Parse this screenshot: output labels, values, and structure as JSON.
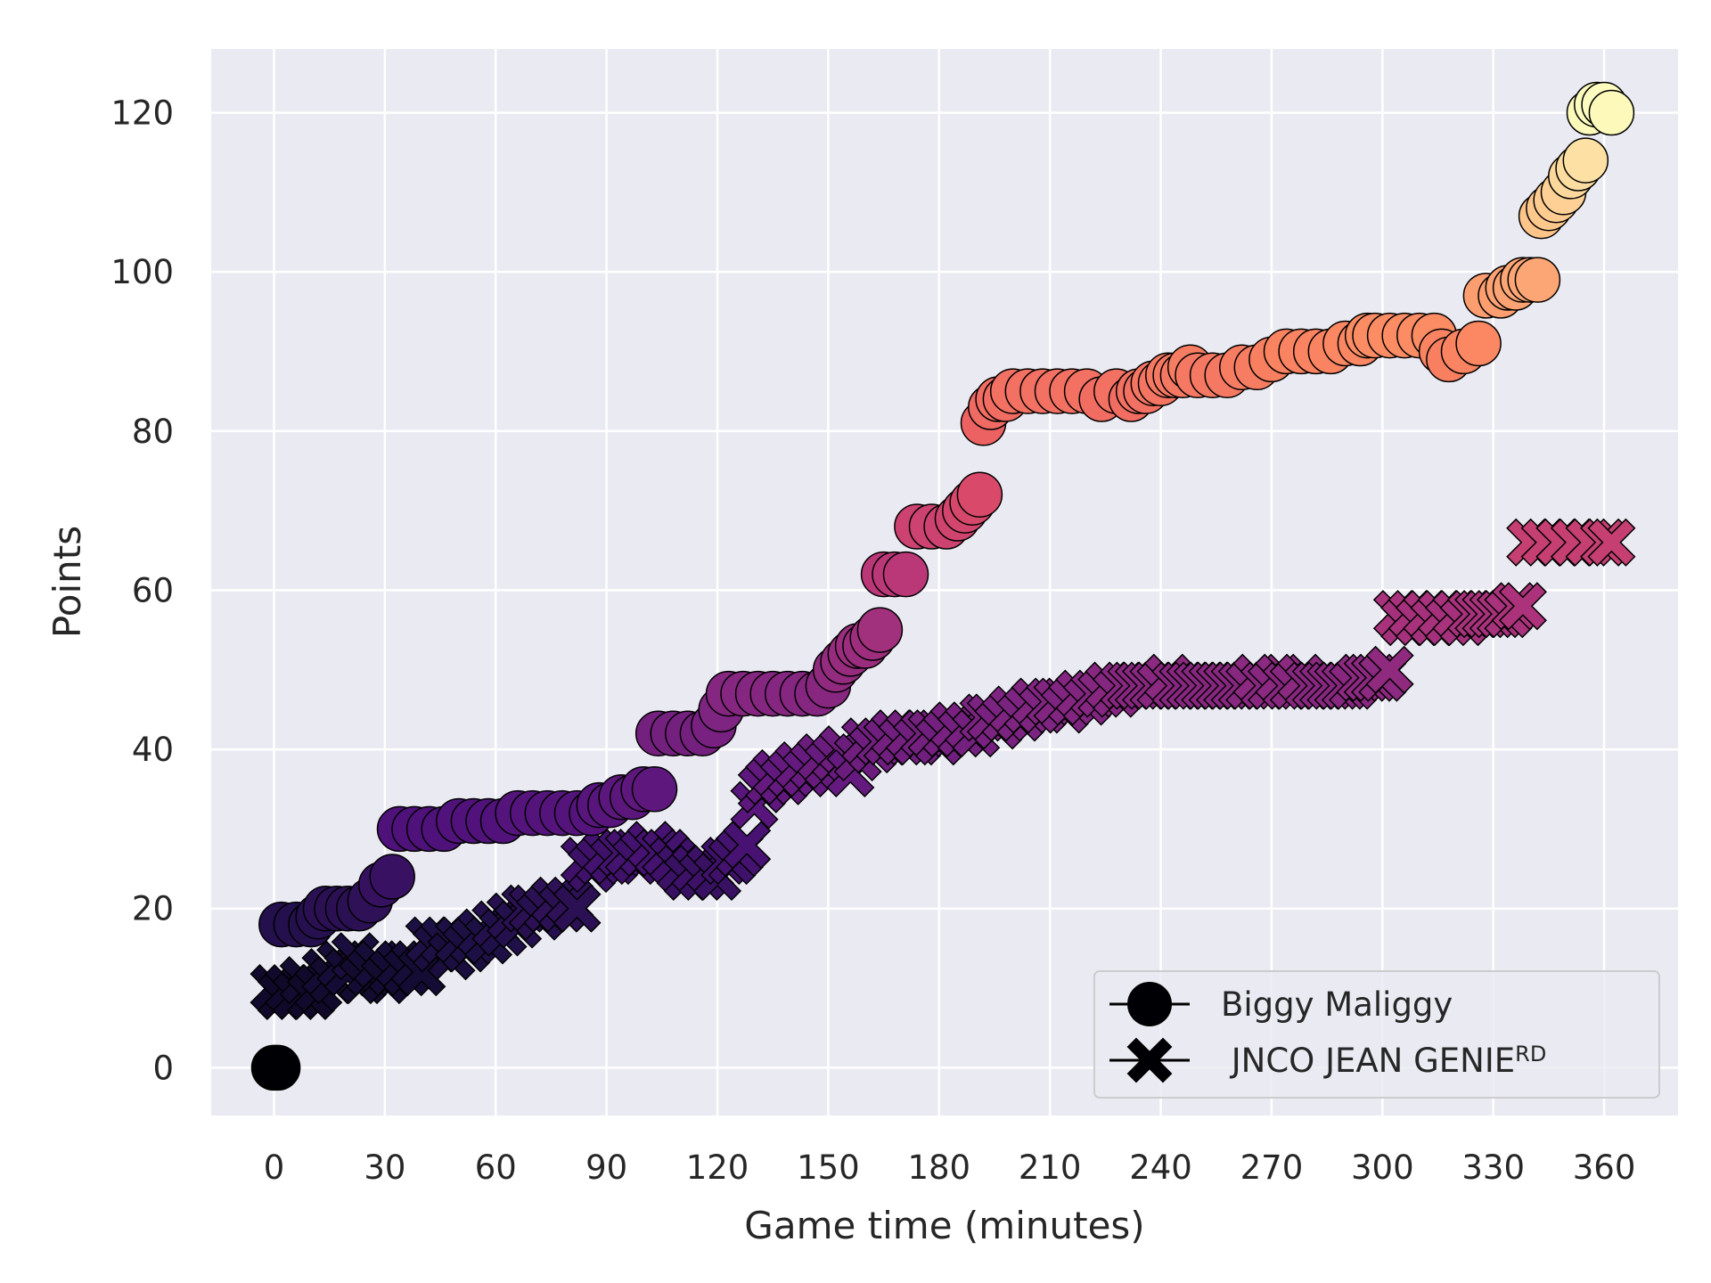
{
  "chart_data": {
    "type": "scatter",
    "xlabel": "Game time (minutes)",
    "ylabel": "Points",
    "xlim": [
      -17,
      380
    ],
    "ylim": [
      -6,
      128
    ],
    "xticks": [
      0,
      30,
      60,
      90,
      120,
      150,
      180,
      210,
      240,
      270,
      300,
      330,
      360
    ],
    "yticks": [
      0,
      20,
      40,
      60,
      80,
      100,
      120
    ],
    "grid": true,
    "legend_position": "lower-right",
    "colormap": "magma",
    "background_color": "#eaeaf2",
    "grid_color": "#ffffff",
    "series": [
      {
        "name": "Biggy Maliggy",
        "marker": "circle",
        "points": [
          [
            0,
            0
          ],
          [
            1,
            0
          ],
          [
            2,
            18
          ],
          [
            6,
            18
          ],
          [
            10,
            18
          ],
          [
            12,
            19
          ],
          [
            14,
            20
          ],
          [
            17,
            20
          ],
          [
            20,
            20
          ],
          [
            23,
            20
          ],
          [
            26,
            21
          ],
          [
            29,
            23
          ],
          [
            32,
            24
          ],
          [
            34,
            30
          ],
          [
            38,
            30
          ],
          [
            42,
            30
          ],
          [
            46,
            30
          ],
          [
            50,
            31
          ],
          [
            54,
            31
          ],
          [
            58,
            31
          ],
          [
            62,
            31
          ],
          [
            66,
            32
          ],
          [
            70,
            32
          ],
          [
            74,
            32
          ],
          [
            78,
            32
          ],
          [
            82,
            32
          ],
          [
            86,
            32
          ],
          [
            88,
            33
          ],
          [
            91,
            33
          ],
          [
            94,
            34
          ],
          [
            97,
            34
          ],
          [
            100,
            35
          ],
          [
            103,
            35
          ],
          [
            104,
            42
          ],
          [
            108,
            42
          ],
          [
            112,
            42
          ],
          [
            116,
            42
          ],
          [
            119,
            43
          ],
          [
            121,
            45
          ],
          [
            123,
            47
          ],
          [
            127,
            47
          ],
          [
            131,
            47
          ],
          [
            135,
            47
          ],
          [
            139,
            47
          ],
          [
            143,
            47
          ],
          [
            147,
            47
          ],
          [
            150,
            48
          ],
          [
            152,
            50
          ],
          [
            154,
            51
          ],
          [
            156,
            52
          ],
          [
            158,
            53
          ],
          [
            160,
            53
          ],
          [
            162,
            54
          ],
          [
            164,
            55
          ],
          [
            165,
            62
          ],
          [
            168,
            62
          ],
          [
            171,
            62
          ],
          [
            174,
            68
          ],
          [
            178,
            68
          ],
          [
            182,
            68
          ],
          [
            185,
            69
          ],
          [
            187,
            70
          ],
          [
            189,
            71
          ],
          [
            191,
            72
          ],
          [
            192,
            81
          ],
          [
            194,
            83
          ],
          [
            196,
            84
          ],
          [
            198,
            84
          ],
          [
            200,
            85
          ],
          [
            204,
            85
          ],
          [
            208,
            85
          ],
          [
            212,
            85
          ],
          [
            216,
            85
          ],
          [
            220,
            85
          ],
          [
            224,
            84
          ],
          [
            228,
            85
          ],
          [
            232,
            84
          ],
          [
            234,
            85
          ],
          [
            236,
            85
          ],
          [
            238,
            86
          ],
          [
            240,
            86
          ],
          [
            242,
            87
          ],
          [
            244,
            87
          ],
          [
            246,
            87
          ],
          [
            248,
            88
          ],
          [
            250,
            87
          ],
          [
            254,
            87
          ],
          [
            258,
            87
          ],
          [
            262,
            88
          ],
          [
            266,
            88
          ],
          [
            270,
            89
          ],
          [
            274,
            90
          ],
          [
            278,
            90
          ],
          [
            282,
            90
          ],
          [
            286,
            90
          ],
          [
            290,
            91
          ],
          [
            294,
            91
          ],
          [
            296,
            92
          ],
          [
            298,
            92
          ],
          [
            302,
            92
          ],
          [
            306,
            92
          ],
          [
            310,
            92
          ],
          [
            314,
            92
          ],
          [
            316,
            90
          ],
          [
            318,
            89
          ],
          [
            322,
            90
          ],
          [
            326,
            91
          ],
          [
            328,
            97
          ],
          [
            332,
            97
          ],
          [
            334,
            98
          ],
          [
            336,
            98
          ],
          [
            338,
            99
          ],
          [
            340,
            99
          ],
          [
            342,
            99
          ],
          [
            343,
            107
          ],
          [
            345,
            108
          ],
          [
            347,
            109
          ],
          [
            349,
            110
          ],
          [
            351,
            112
          ],
          [
            353,
            113
          ],
          [
            355,
            114
          ],
          [
            356,
            120
          ],
          [
            358,
            121
          ],
          [
            360,
            121
          ],
          [
            362,
            120
          ]
        ]
      },
      {
        "name": " JNCO JEAN GENIE",
        "superscript": "RD",
        "marker": "x",
        "points": [
          [
            0,
            10
          ],
          [
            2,
            9
          ],
          [
            4,
            10
          ],
          [
            6,
            9
          ],
          [
            8,
            11
          ],
          [
            10,
            9
          ],
          [
            12,
            10
          ],
          [
            14,
            12
          ],
          [
            16,
            11
          ],
          [
            18,
            13
          ],
          [
            20,
            12
          ],
          [
            22,
            14
          ],
          [
            24,
            11
          ],
          [
            26,
            12
          ],
          [
            28,
            13
          ],
          [
            30,
            11
          ],
          [
            32,
            12
          ],
          [
            34,
            13
          ],
          [
            36,
            12
          ],
          [
            38,
            13
          ],
          [
            40,
            12
          ],
          [
            42,
            16
          ],
          [
            44,
            15
          ],
          [
            46,
            16
          ],
          [
            48,
            14
          ],
          [
            50,
            16
          ],
          [
            52,
            15
          ],
          [
            54,
            16
          ],
          [
            56,
            17
          ],
          [
            58,
            16
          ],
          [
            60,
            18
          ],
          [
            62,
            17
          ],
          [
            64,
            19
          ],
          [
            66,
            18
          ],
          [
            68,
            20
          ],
          [
            70,
            20
          ],
          [
            72,
            19
          ],
          [
            74,
            20
          ],
          [
            76,
            21
          ],
          [
            78,
            20
          ],
          [
            80,
            21
          ],
          [
            82,
            20
          ],
          [
            84,
            26
          ],
          [
            86,
            25
          ],
          [
            88,
            26
          ],
          [
            90,
            27
          ],
          [
            92,
            26
          ],
          [
            94,
            27
          ],
          [
            96,
            27
          ],
          [
            98,
            26
          ],
          [
            100,
            27
          ],
          [
            102,
            28
          ],
          [
            104,
            27
          ],
          [
            106,
            27
          ],
          [
            108,
            26
          ],
          [
            110,
            25
          ],
          [
            112,
            24
          ],
          [
            114,
            25
          ],
          [
            116,
            24
          ],
          [
            118,
            25
          ],
          [
            120,
            24
          ],
          [
            122,
            26
          ],
          [
            124,
            26
          ],
          [
            126,
            27
          ],
          [
            128,
            28
          ],
          [
            130,
            33
          ],
          [
            132,
            35
          ],
          [
            134,
            36
          ],
          [
            136,
            37
          ],
          [
            138,
            36
          ],
          [
            140,
            37
          ],
          [
            142,
            38
          ],
          [
            144,
            37
          ],
          [
            146,
            38
          ],
          [
            148,
            39
          ],
          [
            150,
            38
          ],
          [
            152,
            39
          ],
          [
            154,
            40
          ],
          [
            156,
            37
          ],
          [
            158,
            39
          ],
          [
            160,
            41
          ],
          [
            162,
            40
          ],
          [
            164,
            41
          ],
          [
            166,
            41
          ],
          [
            168,
            42
          ],
          [
            170,
            41
          ],
          [
            172,
            42
          ],
          [
            174,
            41
          ],
          [
            176,
            42
          ],
          [
            178,
            42
          ],
          [
            180,
            41
          ],
          [
            182,
            42
          ],
          [
            184,
            43
          ],
          [
            186,
            42
          ],
          [
            188,
            43
          ],
          [
            190,
            42
          ],
          [
            192,
            44
          ],
          [
            194,
            44
          ],
          [
            196,
            43
          ],
          [
            198,
            44
          ],
          [
            200,
            45
          ],
          [
            202,
            44
          ],
          [
            204,
            45
          ],
          [
            206,
            46
          ],
          [
            208,
            45
          ],
          [
            210,
            46
          ],
          [
            212,
            46
          ],
          [
            214,
            45
          ],
          [
            216,
            46
          ],
          [
            218,
            47
          ],
          [
            220,
            46
          ],
          [
            222,
            47
          ],
          [
            224,
            47
          ],
          [
            226,
            48
          ],
          [
            228,
            47
          ],
          [
            230,
            48
          ],
          [
            232,
            48
          ],
          [
            234,
            48
          ],
          [
            236,
            48
          ],
          [
            238,
            48
          ],
          [
            240,
            48
          ],
          [
            242,
            49
          ],
          [
            244,
            48
          ],
          [
            246,
            48
          ],
          [
            248,
            48
          ],
          [
            250,
            48
          ],
          [
            252,
            48
          ],
          [
            254,
            48
          ],
          [
            256,
            48
          ],
          [
            258,
            48
          ],
          [
            260,
            48
          ],
          [
            262,
            48
          ],
          [
            264,
            48
          ],
          [
            266,
            49
          ],
          [
            268,
            48
          ],
          [
            270,
            48
          ],
          [
            272,
            49
          ],
          [
            274,
            48
          ],
          [
            276,
            48
          ],
          [
            278,
            49
          ],
          [
            280,
            48
          ],
          [
            282,
            48
          ],
          [
            284,
            48
          ],
          [
            286,
            48
          ],
          [
            288,
            48
          ],
          [
            290,
            48
          ],
          [
            292,
            48
          ],
          [
            294,
            49
          ],
          [
            296,
            49
          ],
          [
            298,
            49
          ],
          [
            300,
            49
          ],
          [
            302,
            50
          ],
          [
            304,
            57
          ],
          [
            306,
            56
          ],
          [
            308,
            57
          ],
          [
            310,
            56
          ],
          [
            312,
            57
          ],
          [
            314,
            56
          ],
          [
            316,
            57
          ],
          [
            318,
            56
          ],
          [
            320,
            57
          ],
          [
            322,
            56
          ],
          [
            324,
            57
          ],
          [
            326,
            57
          ],
          [
            328,
            57
          ],
          [
            330,
            57
          ],
          [
            332,
            57
          ],
          [
            334,
            57
          ],
          [
            336,
            58
          ],
          [
            338,
            58
          ],
          [
            340,
            66
          ],
          [
            344,
            66
          ],
          [
            348,
            66
          ],
          [
            352,
            66
          ],
          [
            356,
            66
          ],
          [
            360,
            66
          ],
          [
            362,
            66
          ]
        ]
      }
    ]
  }
}
